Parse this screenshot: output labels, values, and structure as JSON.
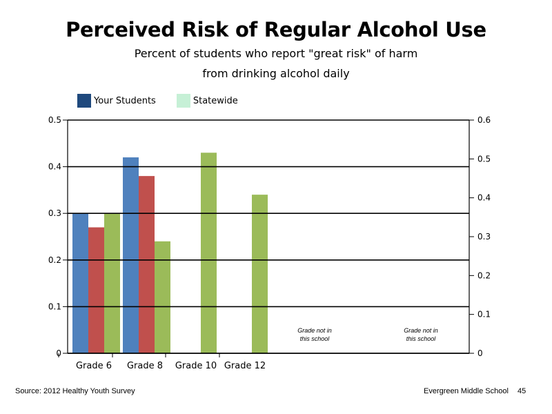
{
  "title": "Perceived Risk of Regular Alcohol Use",
  "subtitle_line1": "Percent of students who report \"great risk\" of harm",
  "subtitle_line2": "from drinking alcohol daily",
  "legend": [
    {
      "label": "Your Students",
      "color": "#1f497d"
    },
    {
      "label": "Statewide",
      "color": "#c6f0d6"
    }
  ],
  "footer": {
    "source": "Source: 2012 Healthy Youth Survey",
    "school": "Evergreen Middle School",
    "page_number": "45"
  },
  "chart_data": {
    "type": "bar",
    "categories": [
      "Grade 6",
      "Grade 8",
      "Grade 10",
      "Grade 12"
    ],
    "series": [
      {
        "color": "#4f81bd",
        "values": [
          0.3,
          0.42,
          null,
          null
        ]
      },
      {
        "color": "#c0504d",
        "values": [
          0.27,
          0.38,
          null,
          null
        ]
      },
      {
        "color": "#9bbb59",
        "values": [
          0.3,
          0.24,
          0.43,
          0.34
        ]
      }
    ],
    "left_axis": {
      "ylim": [
        0,
        0.5
      ],
      "ticks": [
        "0",
        "0.1",
        "0.2",
        "0.3",
        "0.4",
        "0.5"
      ]
    },
    "right_axis": {
      "ylim": [
        0,
        0.6
      ],
      "ticks": [
        "0",
        "0.1",
        "0.2",
        "0.3",
        "0.4",
        "0.5",
        "0.6"
      ]
    },
    "grid": true,
    "annotations": [
      {
        "line1": "Grade not in",
        "line2": "this school"
      },
      {
        "line1": "Grade not in",
        "line2": "this school"
      }
    ]
  }
}
